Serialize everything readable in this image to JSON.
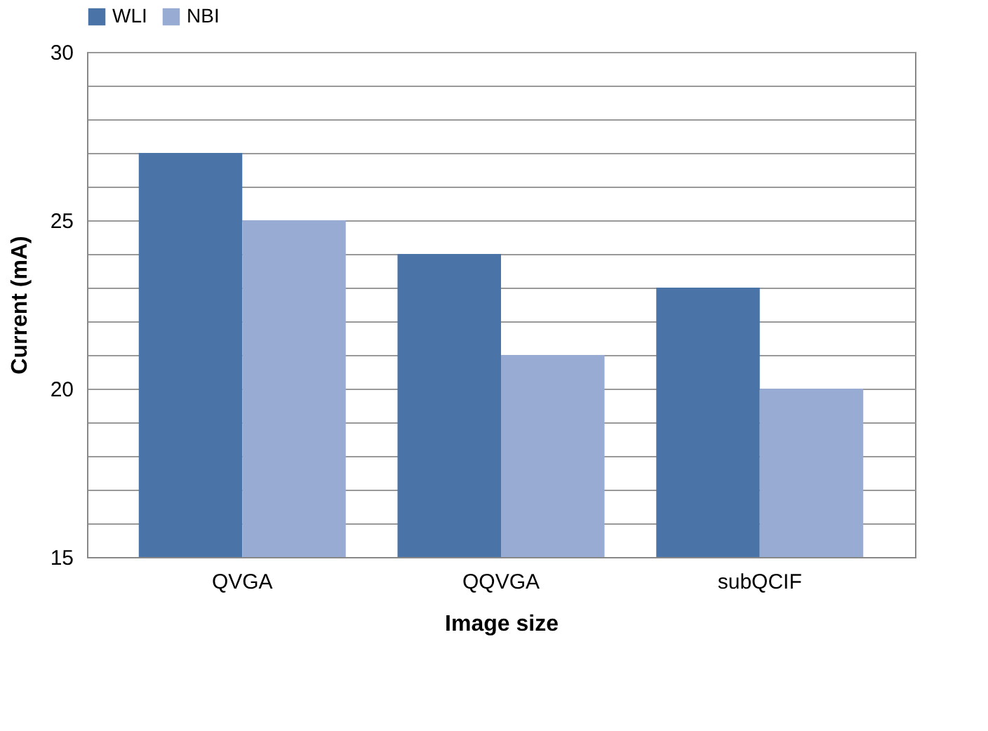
{
  "chart_data": {
    "type": "bar",
    "xlabel": "Image size",
    "ylabel": "Current (mA)",
    "categories": [
      "QVGA",
      "QQVGA",
      "subQCIF"
    ],
    "series": [
      {
        "name": "WLI",
        "color": "#4a74a8",
        "values": [
          27,
          24,
          23
        ]
      },
      {
        "name": "NBI",
        "color": "#98abd3",
        "values": [
          25,
          21,
          20
        ]
      }
    ],
    "ylim": [
      15,
      30
    ],
    "yticks": [
      15,
      {
        "value": 16,
        "label": null
      },
      {
        "value": 17,
        "label": null
      },
      {
        "value": 18,
        "label": null
      },
      {
        "value": 19,
        "label": null
      },
      20,
      {
        "value": 21,
        "label": null
      },
      {
        "value": 22,
        "label": null
      },
      {
        "value": 23,
        "label": null
      },
      {
        "value": 24,
        "label": null
      },
      25,
      {
        "value": 26,
        "label": null
      },
      {
        "value": 27,
        "label": null
      },
      {
        "value": 28,
        "label": null
      },
      {
        "value": 29,
        "label": null
      },
      30
    ],
    "grid": "y",
    "legend": "top"
  }
}
